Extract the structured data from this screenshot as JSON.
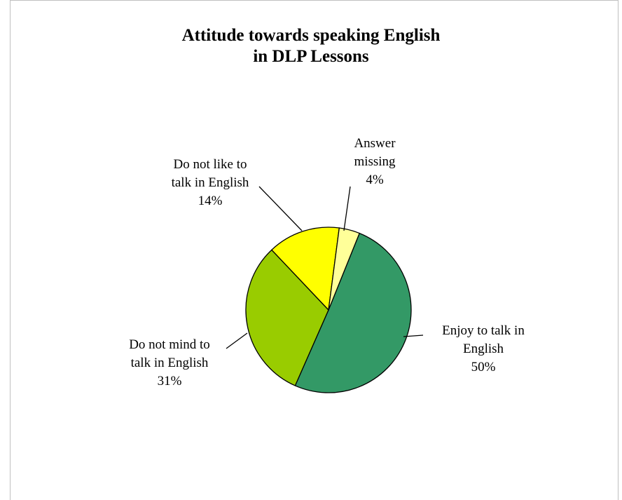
{
  "chart_data": {
    "type": "pie",
    "title_lines": [
      "Attitude towards speaking English",
      "in DLP Lessons"
    ],
    "slices": [
      {
        "label_lines": [
          "Enjoy to talk in",
          "English"
        ],
        "value": 50,
        "pct_label": "50%",
        "color": "#339966"
      },
      {
        "label_lines": [
          "Do not mind to",
          "talk in English"
        ],
        "value": 31,
        "pct_label": "31%",
        "color": "#99cc00"
      },
      {
        "label_lines": [
          "Do not like to",
          "talk in English"
        ],
        "value": 14,
        "pct_label": "14%",
        "color": "#ffff00"
      },
      {
        "label_lines": [
          "Answer",
          "missing"
        ],
        "value": 4,
        "pct_label": "4%",
        "color": "#ffff99"
      }
    ],
    "legend": "none"
  }
}
